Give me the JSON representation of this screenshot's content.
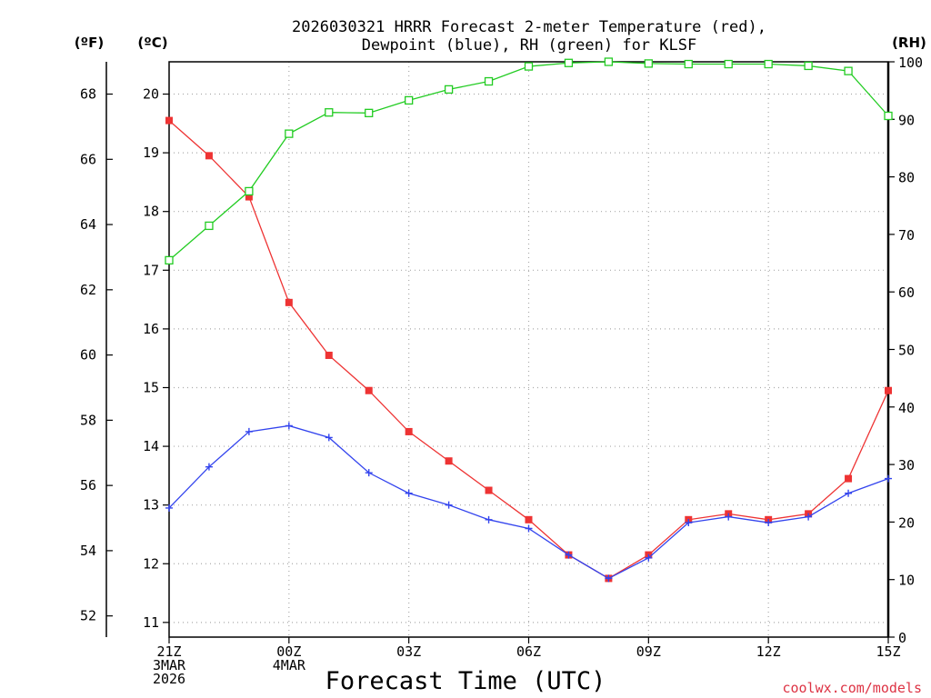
{
  "chart_data": {
    "type": "line",
    "title_line1": "2026030321 HRRR Forecast 2-meter Temperature (red),",
    "title_line2": "Dewpoint (blue), RH (green) for KLSF",
    "xlabel": "Forecast Time (UTC)",
    "unit_f": "(ºF)",
    "unit_c": "(ºC)",
    "unit_rh": "(RH)",
    "credit": "coolwx.com/models",
    "x_hours": [
      0,
      1,
      2,
      3,
      4,
      5,
      6,
      7,
      8,
      9,
      10,
      11,
      12,
      13,
      14,
      15,
      16,
      17,
      18
    ],
    "x_ticks": [
      {
        "hour": 0,
        "lines": [
          "21Z",
          "3MAR",
          "2026"
        ]
      },
      {
        "hour": 3,
        "lines": [
          "00Z",
          "4MAR"
        ]
      },
      {
        "hour": 6,
        "lines": [
          "03Z"
        ]
      },
      {
        "hour": 9,
        "lines": [
          "06Z"
        ]
      },
      {
        "hour": 12,
        "lines": [
          "09Z"
        ]
      },
      {
        "hour": 15,
        "lines": [
          "12Z"
        ]
      },
      {
        "hour": 18,
        "lines": [
          "15Z"
        ]
      }
    ],
    "xlim": [
      0,
      18
    ],
    "ylim_c": [
      10.75,
      20.55
    ],
    "ylim_rh": [
      0,
      100
    ],
    "yticks_c": [
      11,
      12,
      13,
      14,
      15,
      16,
      17,
      18,
      19,
      20
    ],
    "yticks_f": [
      52,
      54,
      56,
      58,
      60,
      62,
      64,
      66,
      68
    ],
    "yticks_rh": [
      0,
      10,
      20,
      30,
      40,
      50,
      60,
      70,
      80,
      90,
      100
    ],
    "grid": true,
    "series": [
      {
        "name": "Temperature",
        "axis": "C",
        "color": "#ee3333",
        "values": [
          19.55,
          18.95,
          18.25,
          16.45,
          15.55,
          14.95,
          14.25,
          13.75,
          13.25,
          12.75,
          12.15,
          11.75,
          12.15,
          12.75,
          12.85,
          12.75,
          12.85,
          13.45,
          14.95
        ]
      },
      {
        "name": "Dewpoint",
        "axis": "C",
        "color": "#3344ee",
        "values": [
          12.95,
          13.65,
          14.25,
          14.35,
          14.15,
          13.55,
          13.2,
          13.0,
          12.75,
          12.6,
          12.15,
          11.75,
          12.1,
          12.7,
          12.8,
          12.7,
          12.8,
          13.2,
          13.45
        ]
      },
      {
        "name": "RH",
        "axis": "RH",
        "color": "#22cc22",
        "values": [
          65.5,
          71.5,
          77.5,
          87.5,
          91.2,
          91.1,
          93.3,
          95.2,
          96.6,
          99.2,
          99.8,
          100,
          99.7,
          99.6,
          99.6,
          99.6,
          99.3,
          98.4,
          90.6
        ]
      }
    ]
  }
}
